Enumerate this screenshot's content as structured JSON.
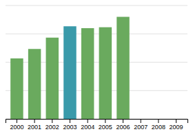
{
  "chart_data": {
    "type": "bar",
    "categories": [
      "2000",
      "2001",
      "2002",
      "2003",
      "2004",
      "2005",
      "2006",
      "2007",
      "2008",
      "2009"
    ],
    "values": [
      3.2,
      3.7,
      4.3,
      4.9,
      4.8,
      4.85,
      5.4,
      0,
      0,
      0
    ],
    "colors": [
      "#6aaa5e",
      "#6aaa5e",
      "#6aaa5e",
      "#3a9aaa",
      "#6aaa5e",
      "#6aaa5e",
      "#6aaa5e",
      "#6aaa5e",
      "#6aaa5e",
      "#6aaa5e"
    ],
    "ylim": [
      0,
      6.0
    ],
    "yticks": [
      0,
      1.5,
      3,
      4.5,
      6
    ],
    "grid": true,
    "tick_labels": "x"
  }
}
